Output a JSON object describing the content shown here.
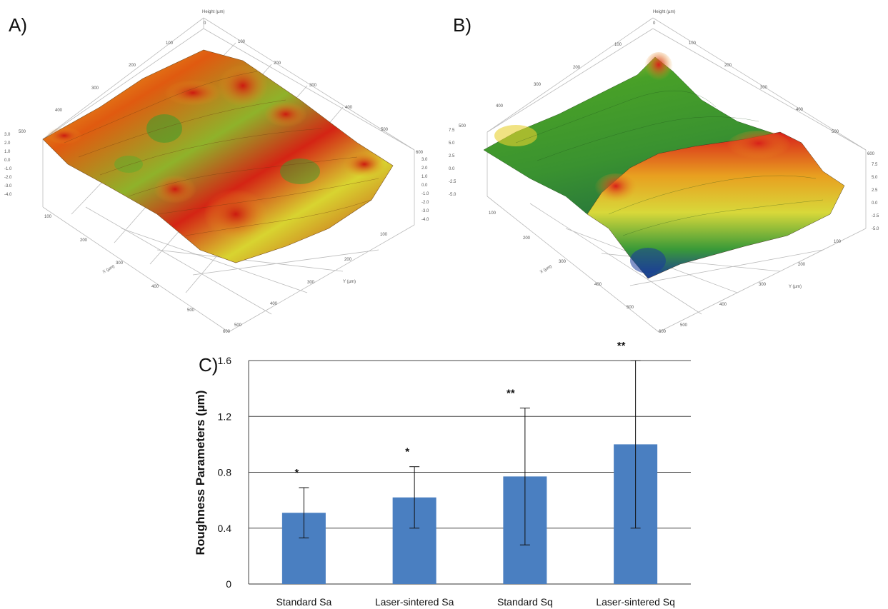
{
  "panels": {
    "a": {
      "letter": "A)",
      "z_axis_label": "Height (µm)",
      "x_axis_label": "X (µm)",
      "y_axis_label": "Y (µm)",
      "top_ticks": [
        "0",
        "100",
        "200",
        "300",
        "400",
        "500",
        "600"
      ],
      "left_ticks": [
        "100",
        "200",
        "300",
        "400",
        "500",
        "600"
      ],
      "right_ticks": [
        "100",
        "200",
        "300",
        "400",
        "500"
      ],
      "height_ticks_left": [
        "-4.0",
        "-3.0",
        "-2.0",
        "-1.0",
        "0.0",
        "1.0",
        "2.0",
        "3.0"
      ],
      "height_ticks_right": [
        "-4.0",
        "-3.0",
        "-2.0",
        "-1.0",
        "0.0",
        "1.0",
        "2.0",
        "3.0"
      ]
    },
    "b": {
      "letter": "B)",
      "z_axis_label": "Height (µm)",
      "x_axis_label": "X (µm)",
      "y_axis_label": "Y (µm)",
      "top_ticks": [
        "0",
        "100",
        "200",
        "300",
        "400",
        "500",
        "600"
      ],
      "left_ticks": [
        "100",
        "200",
        "300",
        "400",
        "500",
        "600"
      ],
      "right_ticks": [
        "100",
        "200",
        "300",
        "400",
        "500"
      ],
      "height_ticks_left": [
        "-5.0",
        "-2.5",
        "0.0",
        "2.5",
        "5.0",
        "7.5"
      ],
      "height_ticks_right": [
        "-5.0",
        "-2.5",
        "0.0",
        "2.5",
        "5.0",
        "7.5"
      ]
    },
    "c": {
      "letter": "C)"
    }
  },
  "chart_data": {
    "type": "bar",
    "categories": [
      "Standard Sa",
      "Laser-sintered Sa",
      "Standard Sq",
      "Laser-sintered Sq"
    ],
    "values": [
      0.51,
      0.62,
      0.77,
      1.0
    ],
    "error": [
      0.18,
      0.22,
      0.49,
      0.6
    ],
    "significance": [
      "*",
      "*",
      "**",
      "**"
    ],
    "ylabel": "Roughness Parameters (µm)",
    "ylim": [
      0,
      1.6
    ],
    "yticks": [
      "0",
      "0.4",
      "0.8",
      "1.2",
      "1.6"
    ],
    "bar_color": "#4a7fc1",
    "grid": true
  }
}
